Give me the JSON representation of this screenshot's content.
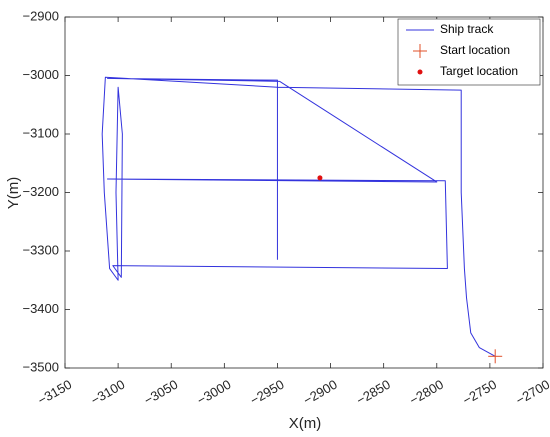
{
  "chart_data": {
    "type": "line",
    "xlabel": "X(m)",
    "ylabel": "Y(m)",
    "xlim": [
      -3150,
      -2700
    ],
    "ylim": [
      -3500,
      -2900
    ],
    "xticks": [
      {
        "value": -3150,
        "label": "−3150"
      },
      {
        "value": -3100,
        "label": "−3100"
      },
      {
        "value": -3050,
        "label": "−3050"
      },
      {
        "value": -3000,
        "label": "−3000"
      },
      {
        "value": -2950,
        "label": "−2950"
      },
      {
        "value": -2900,
        "label": "−2900"
      },
      {
        "value": -2850,
        "label": "−2850"
      },
      {
        "value": -2800,
        "label": "−2800"
      },
      {
        "value": -2750,
        "label": "−2750"
      },
      {
        "value": -2700,
        "label": "−2700"
      }
    ],
    "yticks": [
      {
        "value": -3500,
        "label": "−3500"
      },
      {
        "value": -3400,
        "label": "−3400"
      },
      {
        "value": -3300,
        "label": "−3300"
      },
      {
        "value": -3200,
        "label": "−3200"
      },
      {
        "value": -3100,
        "label": "−3100"
      },
      {
        "value": -3000,
        "label": "−3000"
      },
      {
        "value": -2900,
        "label": "−2900"
      }
    ],
    "legend": "top-right",
    "series": [
      {
        "name": "Ship track",
        "color": "#3333dd",
        "marker": "none",
        "x": [
          -2745,
          -2760,
          -2768,
          -2772,
          -2774,
          -2777,
          -2777,
          -2950,
          -3112,
          -3115,
          -3113,
          -3108,
          -3100,
          -3102,
          -3100,
          -3096,
          -3097,
          -3105,
          -2790,
          -2792,
          -3110,
          -2800,
          -2948,
          -3110,
          -2950,
          -2950,
          -2950
        ],
        "values": [
          -3480,
          -3465,
          -3440,
          -3380,
          -3330,
          -3200,
          -3025,
          -3020,
          -3003,
          -3100,
          -3200,
          -3330,
          -3350,
          -3200,
          -3020,
          -3100,
          -3345,
          -3325,
          -3330,
          -3180,
          -3177,
          -3182,
          -3010,
          -3005,
          -3008,
          -3180,
          -3315
        ]
      },
      {
        "name": "Start location",
        "color": "#e0502a",
        "marker": "plus",
        "x": [
          -2745
        ],
        "values": [
          -3480
        ]
      },
      {
        "name": "Target location",
        "color": "#e01010",
        "marker": "dot",
        "x": [
          -2910
        ],
        "values": [
          -3175
        ]
      }
    ]
  }
}
